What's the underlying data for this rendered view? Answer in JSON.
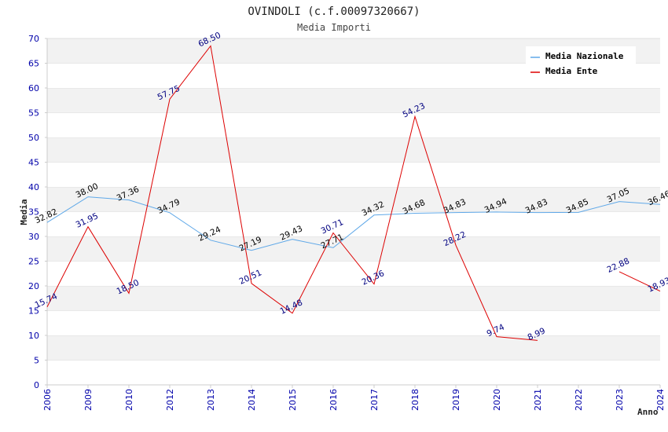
{
  "chart_data": {
    "type": "line",
    "title": "OVINDOLI (c.f.00097320667)",
    "subtitle": "Media Importi",
    "xlabel": "Anno",
    "ylabel": "Media",
    "ylim": [
      0,
      70
    ],
    "yticks": [
      "0",
      "5",
      "10",
      "15",
      "20",
      "25",
      "30",
      "35",
      "40",
      "45",
      "50",
      "55",
      "60",
      "65",
      "70"
    ],
    "categories": [
      "2006",
      "2009",
      "2010",
      "2012",
      "2013",
      "2014",
      "2015",
      "2016",
      "2017",
      "2018",
      "2019",
      "2020",
      "2021",
      "2022",
      "2023",
      "2024"
    ],
    "legend_position": "top-right",
    "grid": "horizontal bands",
    "series": [
      {
        "name": "Media Nazionale",
        "color": "#5fa8e8",
        "label_color": "#000000",
        "values": [
          32.82,
          38.0,
          37.36,
          34.79,
          29.24,
          27.19,
          29.43,
          27.71,
          34.32,
          34.68,
          34.83,
          34.94,
          34.83,
          34.85,
          37.05,
          36.46
        ],
        "labels": [
          "32.82",
          "38.00",
          "37.36",
          "34.79",
          "29.24",
          "27.19",
          "29.43",
          "27.71",
          "34.32",
          "34.68",
          "34.83",
          "34.94",
          "34.83",
          "34.85",
          "37.05",
          "36.46"
        ]
      },
      {
        "name": "Media Ente",
        "color": "#dd0000",
        "label_color": "#000080",
        "values": [
          15.74,
          31.95,
          18.5,
          57.75,
          68.5,
          20.51,
          14.48,
          30.71,
          20.36,
          54.23,
          28.22,
          9.74,
          8.99,
          null,
          22.88,
          18.93
        ],
        "labels": [
          "15.74",
          "31.95",
          "18.50",
          "57.75",
          "68.50",
          "20.51",
          "14.48",
          "30.71",
          "20.36",
          "54.23",
          "28.22",
          "9.74",
          "8.99",
          "",
          "22.88",
          "18.93"
        ]
      }
    ]
  }
}
